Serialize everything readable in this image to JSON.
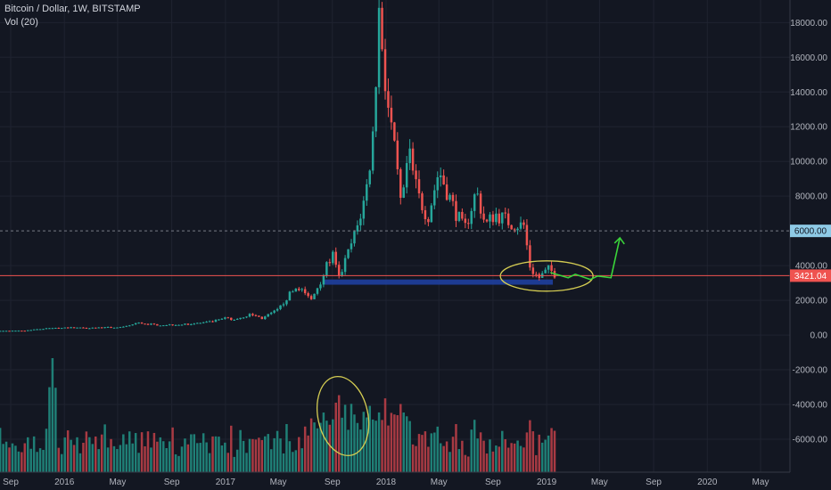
{
  "legend": {
    "symbol": "Bitcoin / Dollar, 1W, BITSTAMP",
    "volume": "Vol (20)"
  },
  "price_axis": {
    "ticks": [
      18000,
      16000,
      14000,
      12000,
      10000,
      8000,
      4000,
      2000,
      0,
      -2000,
      -4000,
      -6000
    ],
    "tick_labels": [
      "18000.00",
      "16000.00",
      "14000.00",
      "12000.00",
      "10000.00",
      "8000.00",
      "4000.00",
      "2000.00",
      "0.00",
      "-2000.00",
      "-4000.00",
      "-6000.00"
    ],
    "range": [
      -7900,
      19300
    ]
  },
  "time_axis": {
    "labels": [
      "Sep",
      "2016",
      "May",
      "Sep",
      "2017",
      "May",
      "Sep",
      "2018",
      "May",
      "Sep",
      "2019",
      "May",
      "Sep",
      "2020",
      "May"
    ],
    "dates": [
      "2015-09-01",
      "2016-01-01",
      "2016-05-01",
      "2016-09-01",
      "2017-01-01",
      "2017-05-01",
      "2017-09-01",
      "2018-01-01",
      "2018-05-01",
      "2018-09-01",
      "2019-01-01",
      "2019-05-01",
      "2019-09-01",
      "2020-01-01",
      "2020-05-01"
    ]
  },
  "tags": {
    "level": "6000.00",
    "last": "3421.04"
  },
  "colors": {
    "up": "#26a69a",
    "down": "#ef5350",
    "vol_up": "#1f7f76",
    "vol_down": "#a83a43",
    "level_line": "#787b86",
    "last_line": "#ef5350",
    "level_tag": "#8ecae6",
    "support_zone": "#1f3f9e",
    "annotation_ellipse": "#d4cc52",
    "annotation_arrow": "#3ad43a"
  },
  "chart_data": {
    "type": "candlestick",
    "title": "Bitcoin / Dollar, 1W, BITSTAMP",
    "x": "weekly dates",
    "close": [
      {
        "date": "2015-08-01",
        "value": 230
      },
      {
        "date": "2015-10-01",
        "value": 240
      },
      {
        "date": "2015-11-01",
        "value": 330
      },
      {
        "date": "2015-12-15",
        "value": 430
      },
      {
        "date": "2016-03-01",
        "value": 420
      },
      {
        "date": "2016-05-15",
        "value": 450
      },
      {
        "date": "2016-06-15",
        "value": 700
      },
      {
        "date": "2016-08-01",
        "value": 580
      },
      {
        "date": "2016-10-01",
        "value": 615
      },
      {
        "date": "2016-12-01",
        "value": 760
      },
      {
        "date": "2017-01-05",
        "value": 1000
      },
      {
        "date": "2017-01-15",
        "value": 850
      },
      {
        "date": "2017-03-01",
        "value": 1200
      },
      {
        "date": "2017-03-25",
        "value": 960
      },
      {
        "date": "2017-05-01",
        "value": 1450
      },
      {
        "date": "2017-05-25",
        "value": 2300
      },
      {
        "date": "2017-06-15",
        "value": 2800
      },
      {
        "date": "2017-07-15",
        "value": 2000
      },
      {
        "date": "2017-08-10",
        "value": 3400
      },
      {
        "date": "2017-09-01",
        "value": 4700
      },
      {
        "date": "2017-09-15",
        "value": 3200
      },
      {
        "date": "2017-10-01",
        "value": 4300
      },
      {
        "date": "2017-10-25",
        "value": 6000
      },
      {
        "date": "2017-11-15",
        "value": 8000
      },
      {
        "date": "2017-12-01",
        "value": 11000
      },
      {
        "date": "2017-12-17",
        "value": 19000
      },
      {
        "date": "2018-01-01",
        "value": 14000
      },
      {
        "date": "2018-01-15",
        "value": 11500
      },
      {
        "date": "2018-02-06",
        "value": 7000
      },
      {
        "date": "2018-02-20",
        "value": 10500
      },
      {
        "date": "2018-03-15",
        "value": 8000
      },
      {
        "date": "2018-04-06",
        "value": 6800
      },
      {
        "date": "2018-05-01",
        "value": 9500
      },
      {
        "date": "2018-06-01",
        "value": 7500
      },
      {
        "date": "2018-06-28",
        "value": 6000
      },
      {
        "date": "2018-07-25",
        "value": 8300
      },
      {
        "date": "2018-08-15",
        "value": 6300
      },
      {
        "date": "2018-09-05",
        "value": 7000
      },
      {
        "date": "2018-10-15",
        "value": 6400
      },
      {
        "date": "2018-11-10",
        "value": 6300
      },
      {
        "date": "2018-11-25",
        "value": 3800
      },
      {
        "date": "2018-12-15",
        "value": 3300
      },
      {
        "date": "2019-01-05",
        "value": 3800
      },
      {
        "date": "2019-01-25",
        "value": 3421
      }
    ],
    "annotations": {
      "horizontal_line": 6000,
      "last_price": 3421.04,
      "support_zone": {
        "from_date": "2017-08-10",
        "to_date": "2019-01-15",
        "low": 2900,
        "high": 3200
      }
    },
    "volume": "Vol (20)",
    "ylim": [
      -7900,
      19300
    ],
    "grid": true
  }
}
